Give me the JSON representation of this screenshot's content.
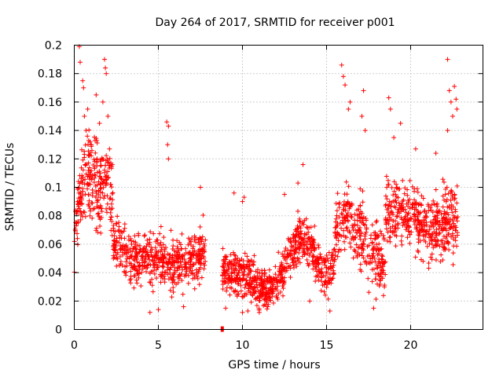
{
  "chart_data": {
    "type": "scatter",
    "title": "Day 264 of 2017, SRMTID for receiver p001",
    "xlabel": "GPS time / hours",
    "ylabel": "SRMTID / TECUs",
    "xlim": [
      0,
      24.3
    ],
    "ylim": [
      0,
      0.2
    ],
    "x_ticks": [
      0,
      5,
      10,
      15,
      20
    ],
    "y_ticks": [
      0,
      0.02,
      0.04,
      0.06,
      0.08,
      0.1,
      0.12,
      0.14,
      0.16,
      0.18,
      0.2
    ],
    "x_tick_labels": [
      "0",
      "5",
      "10",
      "15",
      "20"
    ],
    "y_tick_labels": [
      "0",
      "0.02",
      "0.04",
      "0.06",
      "0.08",
      "0.1",
      "0.12",
      "0.14",
      "0.16",
      "0.18",
      "0.2"
    ],
    "grid": true,
    "marker": "+",
    "color": "#ff0000",
    "data_gap_hours": [
      7.8,
      8.8
    ],
    "gap_marker": {
      "x": 8.8,
      "y": 0.0
    },
    "series": [
      {
        "name": "p001",
        "segments": [
          {
            "x0": 0.0,
            "x1": 2.3,
            "profile": [
              [
                0.0,
                0.07
              ],
              [
                0.5,
                0.1
              ],
              [
                1.0,
                0.11
              ],
              [
                1.5,
                0.1
              ],
              [
                2.0,
                0.11
              ],
              [
                2.3,
                0.08
              ]
            ],
            "spread": 0.025,
            "count": 260
          },
          {
            "x0": 2.3,
            "x1": 7.8,
            "profile": [
              [
                2.3,
                0.065
              ],
              [
                3.0,
                0.055
              ],
              [
                4.0,
                0.05
              ],
              [
                5.0,
                0.05
              ],
              [
                6.0,
                0.045
              ],
              [
                7.0,
                0.05
              ],
              [
                7.8,
                0.055
              ]
            ],
            "spread": 0.015,
            "count": 560
          },
          {
            "x0": 8.8,
            "x1": 12.5,
            "profile": [
              [
                8.8,
                0.04
              ],
              [
                9.5,
                0.04
              ],
              [
                10.5,
                0.035
              ],
              [
                11.0,
                0.03
              ],
              [
                12.0,
                0.03
              ],
              [
                12.5,
                0.04
              ]
            ],
            "spread": 0.012,
            "count": 420
          },
          {
            "x0": 12.5,
            "x1": 15.5,
            "profile": [
              [
                12.5,
                0.045
              ],
              [
                13.5,
                0.065
              ],
              [
                14.0,
                0.06
              ],
              [
                14.5,
                0.045
              ],
              [
                15.0,
                0.04
              ],
              [
                15.5,
                0.05
              ]
            ],
            "spread": 0.013,
            "count": 300
          },
          {
            "x0": 15.5,
            "x1": 18.5,
            "profile": [
              [
                15.5,
                0.07
              ],
              [
                16.0,
                0.08
              ],
              [
                16.5,
                0.075
              ],
              [
                17.0,
                0.07
              ],
              [
                18.0,
                0.05
              ],
              [
                18.5,
                0.045
              ]
            ],
            "spread": 0.02,
            "count": 290
          },
          {
            "x0": 18.5,
            "x1": 22.8,
            "profile": [
              [
                18.5,
                0.08
              ],
              [
                19.5,
                0.085
              ],
              [
                20.0,
                0.08
              ],
              [
                21.0,
                0.07
              ],
              [
                22.0,
                0.075
              ],
              [
                22.8,
                0.08
              ]
            ],
            "spread": 0.018,
            "count": 460
          }
        ],
        "peaks": [
          [
            0.3,
            0.199
          ],
          [
            0.35,
            0.188
          ],
          [
            0.5,
            0.175
          ],
          [
            0.55,
            0.17
          ],
          [
            0.6,
            0.15
          ],
          [
            0.7,
            0.14
          ],
          [
            0.8,
            0.155
          ],
          [
            1.0,
            0.13
          ],
          [
            1.3,
            0.165
          ],
          [
            1.5,
            0.145
          ],
          [
            1.7,
            0.16
          ],
          [
            1.8,
            0.19
          ],
          [
            1.85,
            0.184
          ],
          [
            1.9,
            0.18
          ],
          [
            2.0,
            0.15
          ],
          [
            5.5,
            0.146
          ],
          [
            5.6,
            0.143
          ],
          [
            5.55,
            0.13
          ],
          [
            5.6,
            0.12
          ],
          [
            13.6,
            0.116
          ],
          [
            15.9,
            0.186
          ],
          [
            16.0,
            0.178
          ],
          [
            16.1,
            0.172
          ],
          [
            16.3,
            0.155
          ],
          [
            16.4,
            0.16
          ],
          [
            17.2,
            0.168
          ],
          [
            17.1,
            0.15
          ],
          [
            17.3,
            0.14
          ],
          [
            18.7,
            0.163
          ],
          [
            18.8,
            0.155
          ],
          [
            19.4,
            0.145
          ],
          [
            19.0,
            0.135
          ],
          [
            22.2,
            0.19
          ],
          [
            22.3,
            0.168
          ],
          [
            22.4,
            0.16
          ],
          [
            22.5,
            0.15
          ],
          [
            22.6,
            0.171
          ],
          [
            22.7,
            0.162
          ],
          [
            22.75,
            0.155
          ],
          [
            22.2,
            0.14
          ],
          [
            20.3,
            0.127
          ],
          [
            21.5,
            0.124
          ],
          [
            9.5,
            0.096
          ],
          [
            10.1,
            0.093
          ],
          [
            10.0,
            0.09
          ],
          [
            12.5,
            0.095
          ],
          [
            13.3,
            0.103
          ],
          [
            7.5,
            0.1
          ],
          [
            4.5,
            0.012
          ],
          [
            5.0,
            0.014
          ],
          [
            6.5,
            0.016
          ],
          [
            10.0,
            0.012
          ],
          [
            11.0,
            0.012
          ],
          [
            11.5,
            0.016
          ],
          [
            15.2,
            0.013
          ],
          [
            17.8,
            0.015
          ],
          [
            14.0,
            0.02
          ],
          [
            9.0,
            0.015
          ]
        ]
      }
    ]
  }
}
